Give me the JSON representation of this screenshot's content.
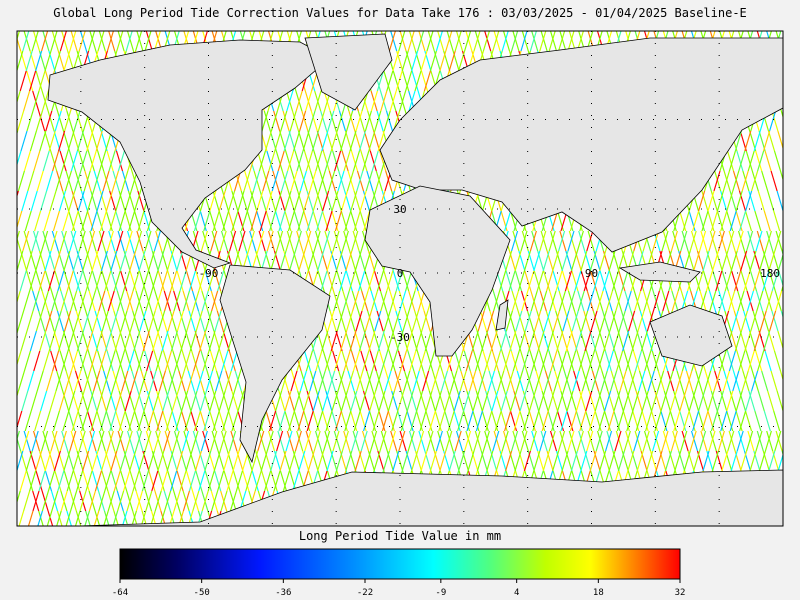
{
  "title": "Global Long Period Tide Correction Values for Data Take 176 : 03/03/2025 - 01/04/2025 Baseline-E",
  "map": {
    "lat_labels": [
      30,
      -30
    ],
    "lon_labels": [
      -90,
      0,
      90,
      180
    ]
  },
  "colorbar": {
    "title": "Long Period Tide Value in mm",
    "range": [
      -64,
      32
    ],
    "ticks": [
      -64,
      -50,
      -36,
      -22,
      -9,
      4,
      18,
      32
    ]
  }
}
